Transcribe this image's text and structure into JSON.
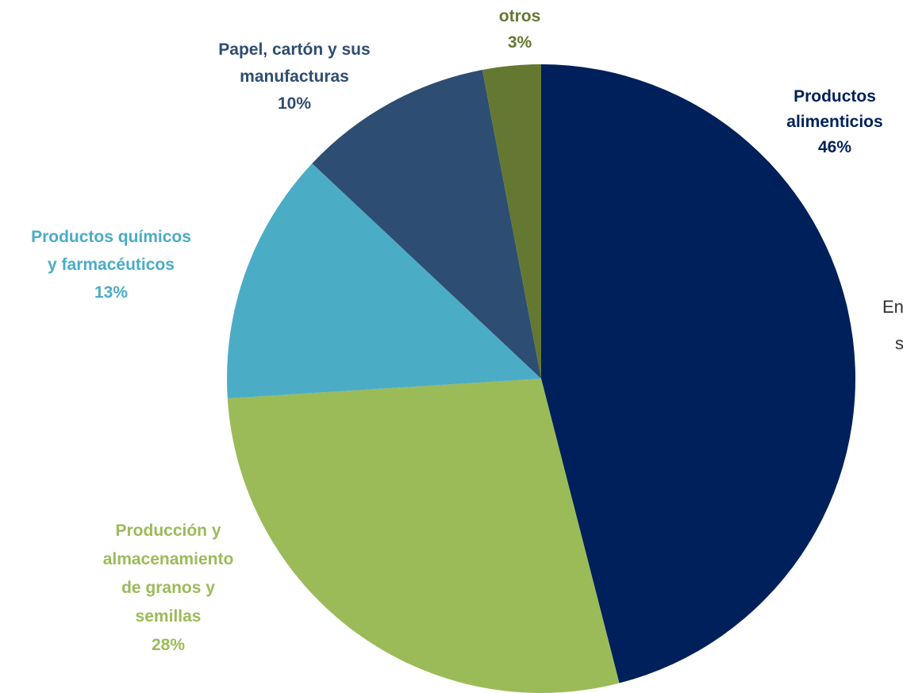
{
  "chart_data": {
    "type": "pie",
    "start_angle_deg": 0,
    "direction": "clockwise",
    "slices": [
      {
        "label_lines": [
          "Productos",
          "alimenticios"
        ],
        "value": 46,
        "value_label": "46%",
        "color": "#00205B"
      },
      {
        "label_lines": [
          "Producción y",
          "almacenamiento",
          "de granos y",
          "semillas"
        ],
        "value": 28,
        "value_label": "28%",
        "color": "#9BBB59"
      },
      {
        "label_lines": [
          "Productos químicos",
          "y farmacéuticos"
        ],
        "value": 13,
        "value_label": "13%",
        "color": "#4BACC6"
      },
      {
        "label_lines": [
          "Papel, cartón y sus",
          "manufacturas"
        ],
        "value": 10,
        "value_label": "10%",
        "color": "#2E4D72"
      },
      {
        "label_lines": [
          "otros"
        ],
        "value": 3,
        "value_label": "3%",
        "color": "#647832"
      }
    ],
    "legend": "none"
  },
  "cut_off_text": [
    "En",
    "s"
  ]
}
